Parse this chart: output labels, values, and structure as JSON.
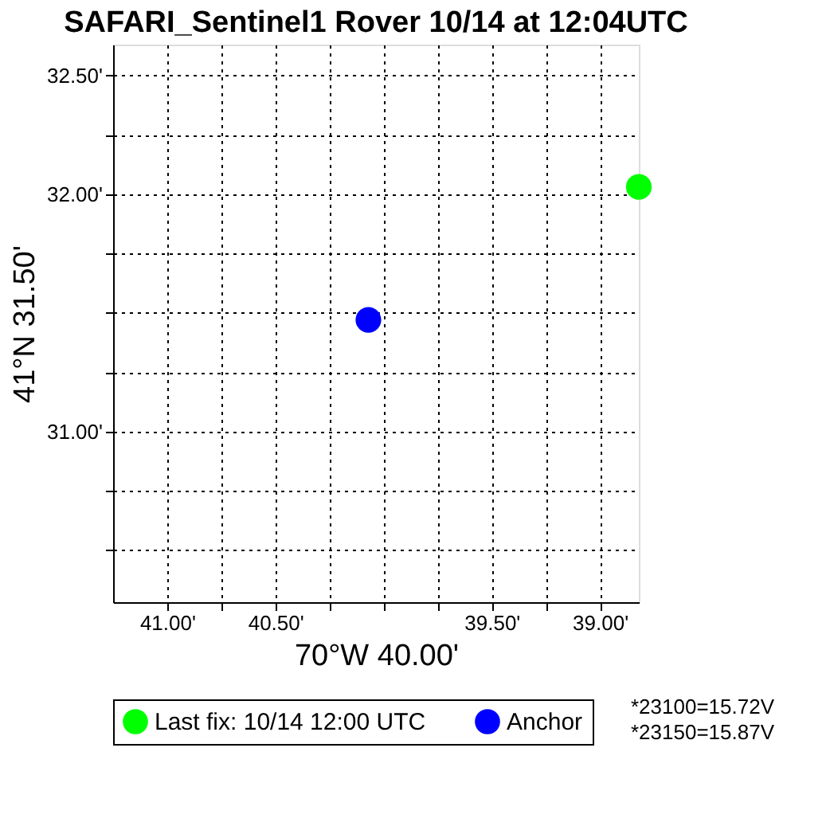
{
  "chart_data": {
    "type": "scatter",
    "title": "SAFARI_Sentinel1 Rover 10/14 at 12:04UTC",
    "xlabel": "70°W 40.00'",
    "ylabel": "41°N 31.50'",
    "xlim": [
      41.25,
      38.82
    ],
    "ylim": [
      30.28,
      32.63
    ],
    "xticks": [
      {
        "value": 41.0,
        "label": "41.00'"
      },
      {
        "value": 40.75,
        "label": null
      },
      {
        "value": 40.5,
        "label": "40.50'"
      },
      {
        "value": 40.25,
        "label": null
      },
      {
        "value": 40.0,
        "label": null
      },
      {
        "value": 39.75,
        "label": null
      },
      {
        "value": 39.5,
        "label": "39.50'"
      },
      {
        "value": 39.25,
        "label": null
      },
      {
        "value": 39.0,
        "label": "39.00'"
      }
    ],
    "yticks": [
      {
        "value": 30.5,
        "label": null
      },
      {
        "value": 30.75,
        "label": null
      },
      {
        "value": 31.0,
        "label": "31.00'"
      },
      {
        "value": 31.25,
        "label": null
      },
      {
        "value": 31.5,
        "label": null
      },
      {
        "value": 31.75,
        "label": null
      },
      {
        "value": 32.0,
        "label": "32.00'"
      },
      {
        "value": 32.25,
        "label": null
      },
      {
        "value": 32.5,
        "label": "32.50'"
      }
    ],
    "series": [
      {
        "name": "Last fix: 10/14 12:00 UTC",
        "color": "#00ff00",
        "x": [
          38.82
        ],
        "values": [
          32.03
        ]
      },
      {
        "name": "Anchor",
        "color": "#0000ff",
        "x": [
          40.07
        ],
        "values": [
          31.47
        ]
      }
    ],
    "grid": true,
    "legend": "bottom",
    "marker": "circle",
    "annotations": [
      "*23100=15.72V",
      "*23150=15.87V"
    ]
  }
}
